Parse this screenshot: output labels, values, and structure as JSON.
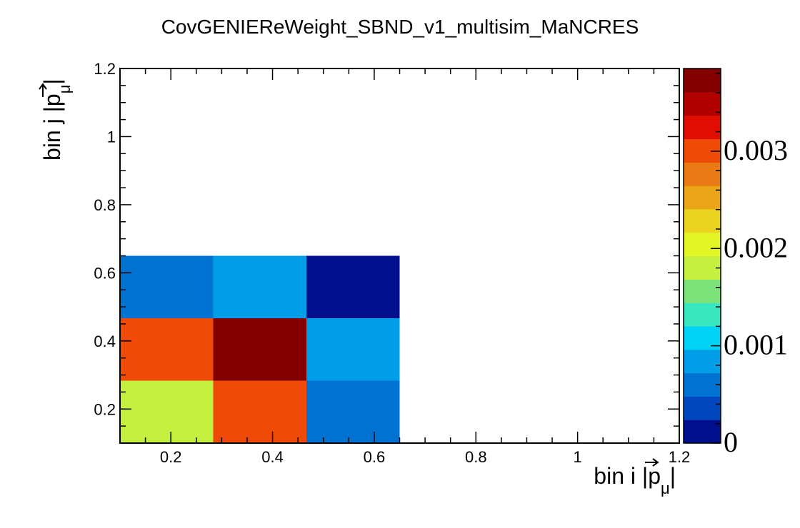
{
  "chart_data": {
    "type": "heatmap",
    "title": "CovGENIEReWeight_SBND_v1_multisim_MaNCRES",
    "xlabel": {
      "prefix": "bin i |",
      "var": "p",
      "sub": "μ",
      "suffix": "|"
    },
    "ylabel": {
      "prefix": "bin j |",
      "var": "p",
      "sub": "μ",
      "suffix": "|"
    },
    "xlim": [
      0.1,
      1.2
    ],
    "ylim": [
      0.1,
      1.2
    ],
    "x_ticks": [
      "0.2",
      "0.4",
      "0.6",
      "0.8",
      "1",
      "1.2"
    ],
    "y_ticks": [
      "0.2",
      "0.4",
      "0.6",
      "0.8",
      "1",
      "1.2"
    ],
    "x_bin_edges": [
      0.1,
      0.2833,
      0.4667,
      0.65
    ],
    "y_bin_edges": [
      0.1,
      0.2833,
      0.4667,
      0.65
    ],
    "z": [
      [
        0.0019,
        0.0029,
        0.00062
      ],
      [
        0.0029,
        0.00385,
        0.0009
      ],
      [
        0.00062,
        0.0009,
        0.00014
      ]
    ],
    "z_note_order": "z[row][col], row 0 = lowest y bin, col 0 = lowest x bin",
    "zlim": [
      0,
      0.00385
    ],
    "colorbar_ticks": [
      "0",
      "0.001",
      "0.002",
      "0.003"
    ],
    "colorbar_tick_values": [
      0,
      0.001,
      0.002,
      0.003
    ],
    "colormap": [
      "#000f8c",
      "#0047c0",
      "#0072d2",
      "#009ee8",
      "#00d2f5",
      "#38e6c0",
      "#7be37a",
      "#c4f040",
      "#e3f525",
      "#ebd41f",
      "#eba519",
      "#e97a14",
      "#f04a08",
      "#e00d00",
      "#b00000",
      "#820000"
    ],
    "grid": false
  }
}
